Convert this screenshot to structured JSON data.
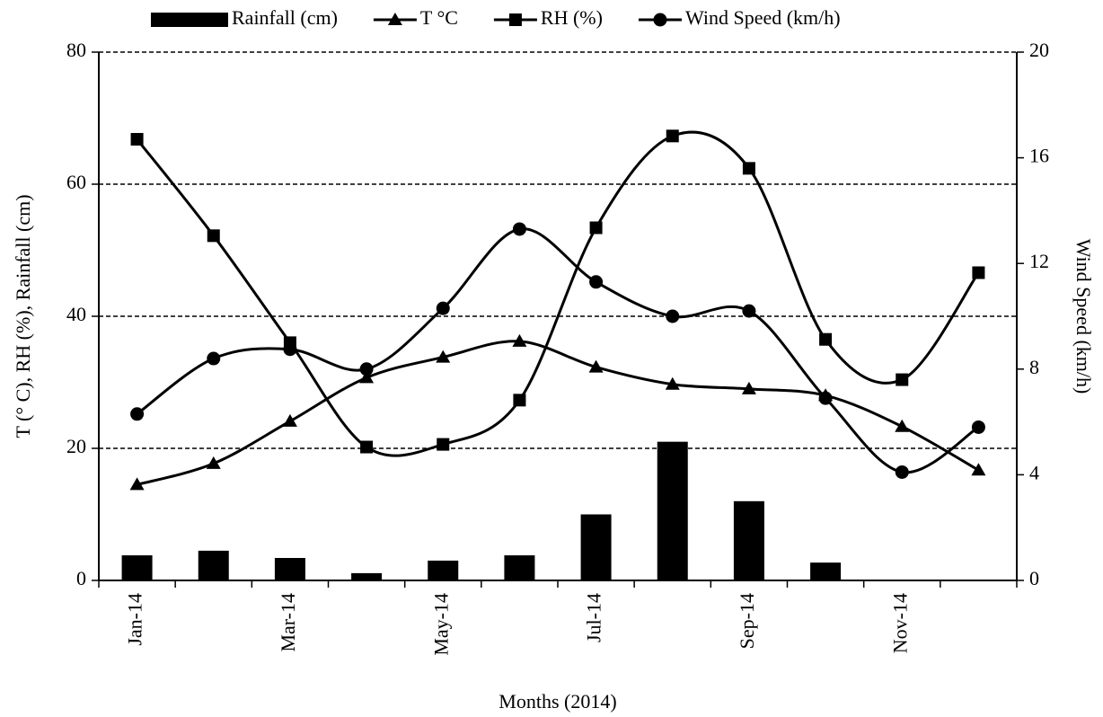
{
  "chart_data": {
    "type": "combo",
    "x_label": "Months (2014)",
    "y_label": "T (° C), RH  (%), Rainfall (cm)",
    "y2_label": "Wind Speed (km/h)",
    "categories": [
      "Jan-14",
      null,
      "Mar-14",
      null,
      "May-14",
      null,
      "Jul-14",
      null,
      "Sep-14",
      null,
      "Nov-14",
      null
    ],
    "ylim": [
      0,
      80
    ],
    "yticks": [
      0,
      20,
      40,
      60,
      80
    ],
    "y2lim": [
      0,
      20
    ],
    "y2ticks": [
      0,
      4,
      8,
      12,
      16,
      20
    ],
    "grid": true,
    "legend": "top",
    "series": [
      {
        "name": "Rainfall (cm)",
        "type": "bar",
        "color": "#000000",
        "values": [
          3.8,
          4.5,
          3.4,
          1.1,
          3.0,
          3.8,
          10,
          21,
          12,
          2.7,
          0,
          0
        ]
      },
      {
        "name": "T °C",
        "type": "line",
        "marker": "triangle",
        "color": "#000000",
        "values": [
          14.5,
          17.7,
          24.1,
          30.7,
          33.8,
          36.2,
          32.3,
          29.7,
          29.0,
          28.0,
          23.3,
          16.7
        ]
      },
      {
        "name": "RH (%)",
        "type": "line",
        "marker": "square",
        "color": "#000000",
        "values": [
          66.8,
          52.2,
          36.0,
          20.2,
          20.6,
          27.3,
          53.4,
          67.3,
          62.4,
          36.5,
          30.4,
          46.6
        ]
      },
      {
        "name": "Wind Speed (km/h)",
        "type": "line",
        "marker": "circle",
        "axis": "y2",
        "color": "#000000",
        "values": [
          6.3,
          8.4,
          8.75,
          8.0,
          10.3,
          13.3,
          11.3,
          10.0,
          10.2,
          6.9,
          4.1,
          5.8
        ]
      }
    ]
  }
}
